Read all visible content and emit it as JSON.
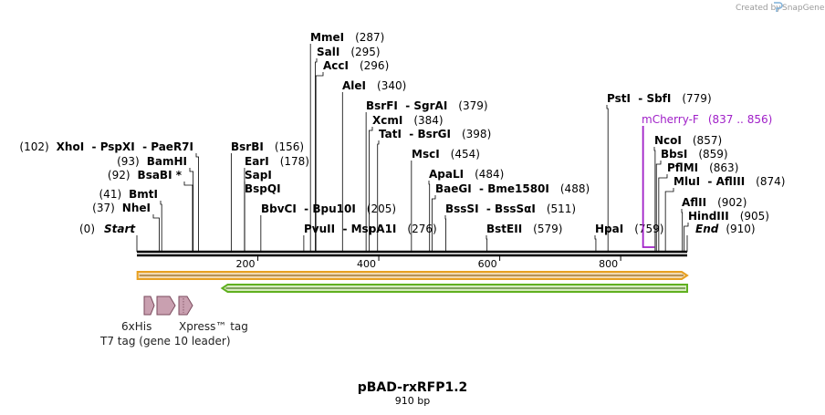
{
  "credit": {
    "prefix": "Created by",
    "brand": "SnapGene"
  },
  "title": "pBAD-rxRFP1.2",
  "subtitle": "910 bp",
  "sequence_length": 910,
  "colors": {
    "mcherry": "#a020c8",
    "orange_feature": "#e8a020",
    "green_feature": "#60b020",
    "tag_fill": "#c9a0b0",
    "tag_stroke": "#7a4a5c"
  },
  "ticks": [
    {
      "pos": 200,
      "label": "200"
    },
    {
      "pos": 400,
      "label": "400"
    },
    {
      "pos": 600,
      "label": "600"
    },
    {
      "pos": 800,
      "label": "800"
    }
  ],
  "sites": [
    {
      "name": "MmeI",
      "pos": 287,
      "pos_label": "(287)",
      "side": "right"
    },
    {
      "name": "SalI",
      "pos": 295,
      "pos_label": "(295)",
      "side": "right"
    },
    {
      "name": "AccI",
      "pos": 296,
      "pos_label": "(296)",
      "side": "right"
    },
    {
      "name": "AleI",
      "pos": 340,
      "pos_label": "(340)",
      "side": "right"
    },
    {
      "name": "BsrFI  - SgrAI",
      "pos": 379,
      "pos_label": "(379)",
      "side": "right"
    },
    {
      "name": "XcmI",
      "pos": 384,
      "pos_label": "(384)",
      "side": "right"
    },
    {
      "name": "TatI  - BsrGI",
      "pos": 398,
      "pos_label": "(398)",
      "side": "right"
    },
    {
      "name": "MscI",
      "pos": 454,
      "pos_label": "(454)",
      "side": "right"
    },
    {
      "name": "ApaLI",
      "pos": 484,
      "pos_label": "(484)",
      "side": "right"
    },
    {
      "name": "BaeGI  - Bme1580I",
      "pos": 488,
      "pos_label": "(488)",
      "side": "right"
    },
    {
      "name": "BssSI  - BssSαI",
      "pos": 511,
      "pos_label": "(511)",
      "side": "right"
    },
    {
      "name": "BstEII",
      "pos": 579,
      "pos_label": "(579)",
      "side": "right"
    },
    {
      "name": "PstI  - SbfI",
      "pos": 779,
      "pos_label": "(779)",
      "side": "right"
    },
    {
      "name": "NcoI",
      "pos": 857,
      "pos_label": "(857)",
      "side": "right"
    },
    {
      "name": "BbsI",
      "pos": 859,
      "pos_label": "(859)",
      "side": "right"
    },
    {
      "name": "PflMI",
      "pos": 863,
      "pos_label": "(863)",
      "side": "right"
    },
    {
      "name": "MluI  - AflIII",
      "pos": 874,
      "pos_label": "(874)",
      "side": "right"
    },
    {
      "name": "AflII",
      "pos": 902,
      "pos_label": "(902)",
      "side": "right"
    },
    {
      "name": "HindIII",
      "pos": 905,
      "pos_label": "(905)",
      "side": "right"
    },
    {
      "name": "BsrBI",
      "pos": 156,
      "pos_label": "(156)",
      "side": "right"
    },
    {
      "name": "EarI",
      "pos": 178,
      "pos_label": "(178)",
      "side": "right"
    },
    {
      "name": "SapI",
      "pos": 178,
      "pos_label": "",
      "side": "right"
    },
    {
      "name": "BspQI",
      "pos": 178,
      "pos_label": "",
      "side": "right"
    },
    {
      "name": "BbvCI  - Bpu10I",
      "pos": 205,
      "pos_label": "(205)",
      "side": "right"
    },
    {
      "name": "PvuII  - MspA1I",
      "pos": 276,
      "pos_label": "(276)",
      "side": "right"
    },
    {
      "name": "HpaI",
      "pos": 759,
      "pos_label": "(759)",
      "side": "right"
    },
    {
      "name": "XhoI  - PspXI  - PaeR7I",
      "pos": 102,
      "pos_label": "(102)",
      "side": "left"
    },
    {
      "name": "BamHI",
      "pos": 93,
      "pos_label": "(93)",
      "side": "left"
    },
    {
      "name": "BsaBI *",
      "pos": 92,
      "pos_label": "(92)",
      "side": "left"
    },
    {
      "name": "BmtI",
      "pos": 41,
      "pos_label": "(41)",
      "side": "left"
    },
    {
      "name": "NheI",
      "pos": 37,
      "pos_label": "(37)",
      "side": "left"
    }
  ],
  "ends": {
    "start": {
      "name": "Start",
      "pos_label": "(0)"
    },
    "end": {
      "name": "End",
      "pos_label": "(910)"
    }
  },
  "primer": {
    "name": "mCherry-F",
    "range": "(837 .. 856)",
    "start": 837,
    "end": 856
  },
  "features": [
    {
      "name": "orange-feature",
      "start": 1,
      "end": 910,
      "direction": "forward"
    },
    {
      "name": "green-feature",
      "start": 141,
      "end": 910,
      "direction": "reverse"
    }
  ],
  "tags": [
    {
      "name": "6xHis",
      "label": "6xHis"
    },
    {
      "name": "Xpress",
      "label": "Xpress™ tag"
    },
    {
      "name": "T7",
      "label": "T7 tag (gene 10 leader)"
    }
  ]
}
